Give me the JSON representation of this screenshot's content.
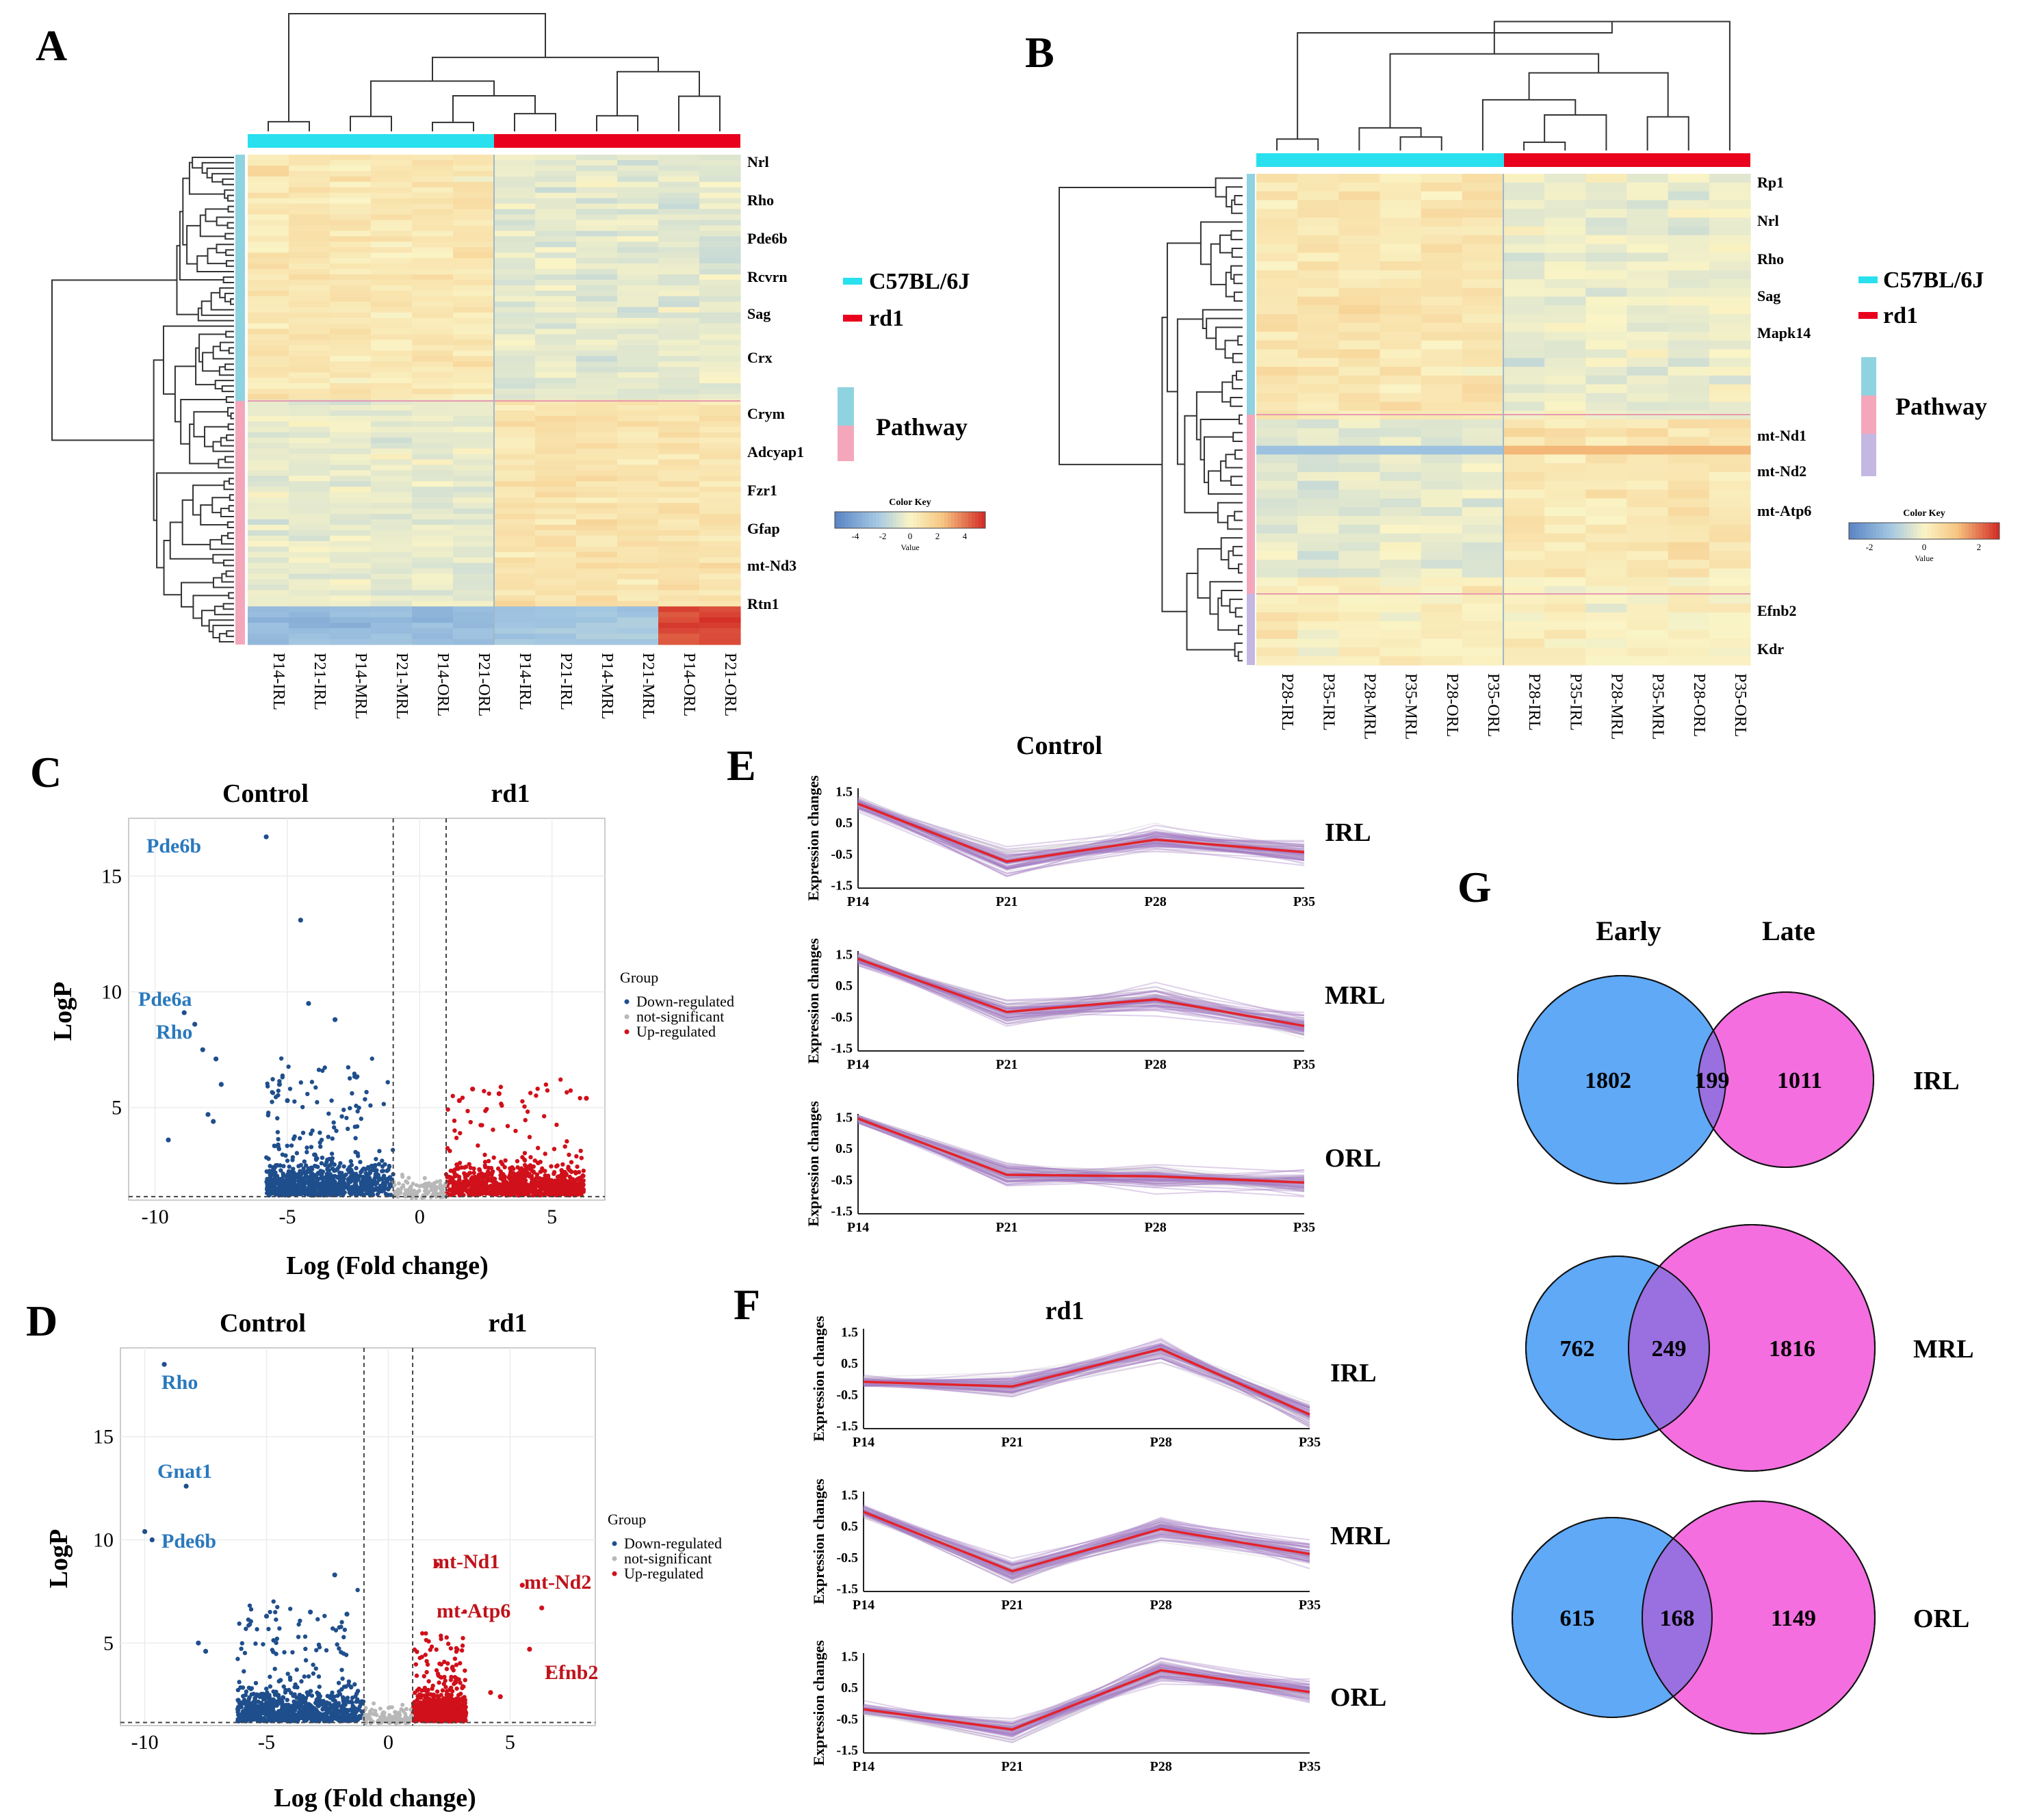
{
  "panels": {
    "A": {
      "letter": "A",
      "samples": [
        "P14-IRL",
        "P21-IRL",
        "P14-MRL",
        "P21-MRL",
        "P14-ORL",
        "P21-ORL",
        "P14-IRL",
        "P21-IRL",
        "P14-MRL",
        "P21-MRL",
        "P14-ORL",
        "P21-ORL"
      ],
      "genes": [
        "Nrl",
        "Rho",
        "Pde6b",
        "Rcvrn",
        "Sag",
        "Crx",
        "Crym",
        "Adcyap1",
        "Fzr1",
        "Gfap",
        "mt-Nd3",
        "Rtn1"
      ],
      "legend": {
        "c57": "C57BL/6J",
        "rd1": "rd1",
        "pathway": "Pathway"
      },
      "color_key": {
        "title": "Color Key",
        "ticks": [
          "-4",
          "-2",
          "0",
          "2",
          "4"
        ],
        "xlabel": "Value"
      }
    },
    "B": {
      "letter": "B",
      "samples": [
        "P28-IRL",
        "P35-IRL",
        "P28-MRL",
        "P35-MRL",
        "P28-ORL",
        "P35-ORL",
        "P28-IRL",
        "P35-IRL",
        "P28-MRL",
        "P35-MRL",
        "P28-ORL",
        "P35-ORL"
      ],
      "genes": [
        "Rp1",
        "Nrl",
        "Rho",
        "Sag",
        "Mapk14",
        "mt-Nd1",
        "mt-Nd2",
        "mt-Atp6",
        "Efnb2",
        "Kdr"
      ],
      "legend": {
        "c57": "C57BL/6J",
        "rd1": "rd1",
        "pathway": "Pathway"
      },
      "color_key": {
        "title": "Color Key",
        "ticks": [
          "-2",
          "0",
          "2"
        ],
        "xlabel": "Value"
      }
    },
    "C": {
      "letter": "C",
      "left_title": "Control",
      "right_title": "rd1",
      "xlabel": "Log (Fold change)",
      "ylabel": "LogP",
      "xticks": [
        "-10",
        "-5",
        "0",
        "5"
      ],
      "yticks": [
        "5",
        "10",
        "15"
      ],
      "labels_left": [
        "Pde6b",
        "Pde6a",
        "Rho"
      ],
      "group_legend": {
        "title": "Group",
        "items": [
          "Down-regulated",
          "not-significant",
          "Up-regulated"
        ]
      }
    },
    "D": {
      "letter": "D",
      "left_title": "Control",
      "right_title": "rd1",
      "xlabel": "Log (Fold change)",
      "ylabel": "LogP",
      "xticks": [
        "-10",
        "-5",
        "0",
        "5"
      ],
      "yticks": [
        "5",
        "10",
        "15"
      ],
      "labels_left": [
        "Rho",
        "Gnat1",
        "Pde6b"
      ],
      "labels_right": [
        "mt-Nd1",
        "mt-Nd2",
        "mt-Atp6",
        "Efnb2"
      ],
      "group_legend": {
        "title": "Group",
        "items": [
          "Down-regulated",
          "not-significant",
          "Up-regulated"
        ]
      }
    },
    "E": {
      "letter": "E",
      "title": "Control",
      "ylabel": "Expression changes",
      "xticks": [
        "P14",
        "P21",
        "P28",
        "P35"
      ],
      "yticks": [
        "1.5",
        "0.5",
        "-0.5",
        "-1.5"
      ],
      "rows": [
        "IRL",
        "MRL",
        "ORL"
      ]
    },
    "F": {
      "letter": "F",
      "title": "rd1",
      "ylabel": "Expression changes",
      "xticks": [
        "P14",
        "P21",
        "P28",
        "P35"
      ],
      "yticks": [
        "1.5",
        "0.5",
        "-0.5",
        "-1.5"
      ],
      "rows": [
        "IRL",
        "MRL",
        "ORL"
      ]
    },
    "G": {
      "letter": "G",
      "early": "Early",
      "late": "Late",
      "venns": [
        {
          "layer": "IRL",
          "early_only": "1802",
          "shared": "199",
          "late_only": "1011"
        },
        {
          "layer": "MRL",
          "early_only": "762",
          "shared": "249",
          "late_only": "1816"
        },
        {
          "layer": "ORL",
          "early_only": "615",
          "shared": "168",
          "late_only": "1149"
        }
      ]
    }
  },
  "chart_data": [
    {
      "type": "line",
      "title": "Control",
      "x": [
        "P14",
        "P21",
        "P28",
        "P35"
      ],
      "series": [
        {
          "name": "IRL",
          "values": [
            1.1,
            -0.75,
            -0.05,
            -0.45
          ]
        },
        {
          "name": "MRL",
          "values": [
            1.35,
            -0.35,
            0.05,
            -0.8
          ]
        },
        {
          "name": "ORL",
          "values": [
            1.45,
            -0.35,
            -0.4,
            -0.6
          ]
        }
      ],
      "ylim": [
        -1.5,
        1.5
      ]
    },
    {
      "type": "line",
      "title": "rd1",
      "x": [
        "P14",
        "P21",
        "P28",
        "P35"
      ],
      "series": [
        {
          "name": "IRL",
          "values": [
            -0.1,
            -0.25,
            0.95,
            -1.15
          ]
        },
        {
          "name": "MRL",
          "values": [
            0.95,
            -0.95,
            0.4,
            -0.4
          ]
        },
        {
          "name": "ORL",
          "values": [
            -0.2,
            -0.85,
            1.05,
            0.35
          ]
        }
      ],
      "ylim": [
        -1.5,
        1.5
      ]
    }
  ],
  "colors": {
    "c57": "#29e0ee",
    "rd1": "#e8001c",
    "path1": "#8fd3e0",
    "path2": "#f4a7bb",
    "path3": "#c4b8e2",
    "down": "#1f4e8c",
    "up": "#d0101a",
    "venn_early": "#5fa9f7",
    "venn_late": "#f46ee0",
    "venn_overlap": "#9a6fe0",
    "label_blue": "#2a79bd",
    "label_red": "#c0121a",
    "trace": "#a47bc4",
    "centroid": "#e2232b"
  }
}
